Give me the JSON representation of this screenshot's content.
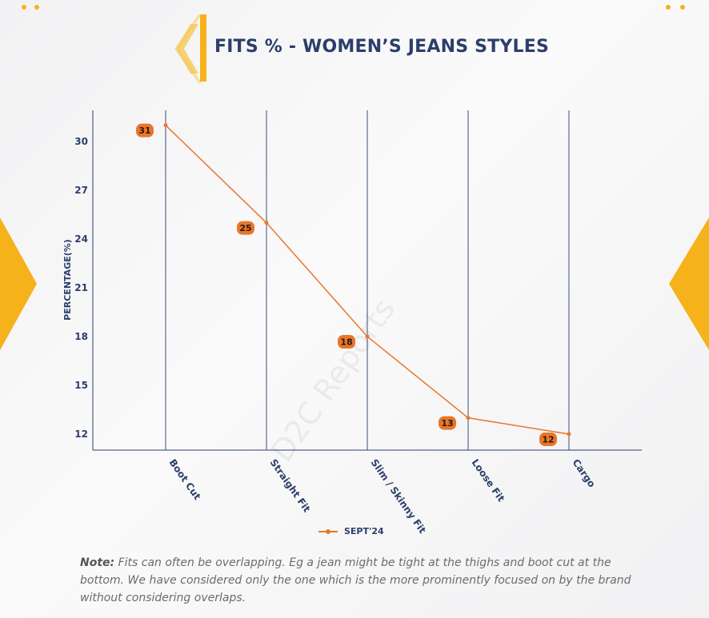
{
  "page": {
    "title": "FITS % - WOMEN’S JEANS STYLES",
    "note_label": "Note:",
    "note_text": " Fits can often be overlapping. Eg a jean might be tight at the thighs and boot cut at the bottom. We have considered only the one which is the more prominently focused on by the brand without considering overlaps.",
    "watermark": "D2C Reports",
    "accent_color": "#f5b21b",
    "series_color": "#e8762a",
    "text_color": "#2c3e6b"
  },
  "chart_data": {
    "type": "line",
    "title": "FITS % - WOMEN’S JEANS STYLES",
    "xlabel": "",
    "ylabel": "PERCENTAGE(%)",
    "categories": [
      "Boot Cut",
      "Straight Fit",
      "Slim / Skinny Fit",
      "Loose Fit",
      "Cargo"
    ],
    "series": [
      {
        "name": "SEPT'24",
        "values": [
          31,
          25,
          18,
          13,
          12
        ],
        "data_labels": [
          "31",
          "25",
          "18",
          "13",
          "12"
        ]
      }
    ],
    "yticks": [
      "12",
      "15",
      "18",
      "21",
      "24",
      "27",
      "30"
    ],
    "ylim": [
      11,
      32
    ],
    "grid": "vertical",
    "legend_position": "bottom"
  }
}
